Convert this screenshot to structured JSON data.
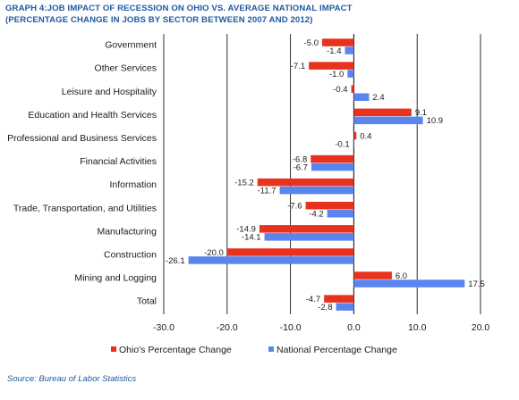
{
  "header": {
    "title_line1": "GRAPH 4:JOB IMPACT OF RECESSION ON OHIO VS. AVERAGE NATIONAL IMPACT",
    "title_line2": "(PERCENTAGE CHANGE IN JOBS BY SECTOR BETWEEN 2007 AND 2012)"
  },
  "source": "Source: Bureau of Labor Statistics",
  "chart_data": {
    "type": "bar",
    "orientation": "horizontal",
    "categories": [
      "Government",
      "Other Services",
      "Leisure and Hospitality",
      "Education and Health Services",
      "Professional and Business Services",
      "Financial Activities",
      "Information",
      "Trade, Transportation, and Utilities",
      "Manufacturing",
      "Construction",
      "Mining and Logging",
      "Total"
    ],
    "series": [
      {
        "name": "Ohio's Percentage Change",
        "color": "#e8321d",
        "values": [
          -5.0,
          -7.1,
          -0.4,
          9.1,
          0.4,
          -6.8,
          -15.2,
          -7.6,
          -14.9,
          -20.0,
          6.0,
          -4.7
        ],
        "labels": [
          "-5.0",
          "-7.1",
          "-0.4",
          "9.1",
          "0.4",
          "-6.8",
          "-15.2",
          "-7.6",
          "-14.9",
          "-20.0",
          "6.0",
          "-4.7"
        ]
      },
      {
        "name": "National Percentage Change",
        "color": "#5a84ee",
        "values": [
          -1.4,
          -1.0,
          2.4,
          10.9,
          -0.1,
          -6.7,
          -11.7,
          -4.2,
          -14.1,
          -26.1,
          17.5,
          -2.8
        ],
        "labels": [
          "-1.4",
          "-1.0",
          "2.4",
          "10.9",
          "-0.1",
          "-6.7",
          "-11.7",
          "-4.2",
          "-14.1",
          "-26.1",
          "17.5",
          "-2.8"
        ]
      }
    ],
    "xlim": [
      -30,
      20
    ],
    "xticks": [
      -30,
      -20,
      -10,
      0,
      10,
      20
    ],
    "xtick_labels": [
      "-30.0",
      "-20.0",
      "-10.0",
      "0.0",
      "10.0",
      "20.0"
    ],
    "grid": "vertical",
    "legend_position": "bottom"
  }
}
